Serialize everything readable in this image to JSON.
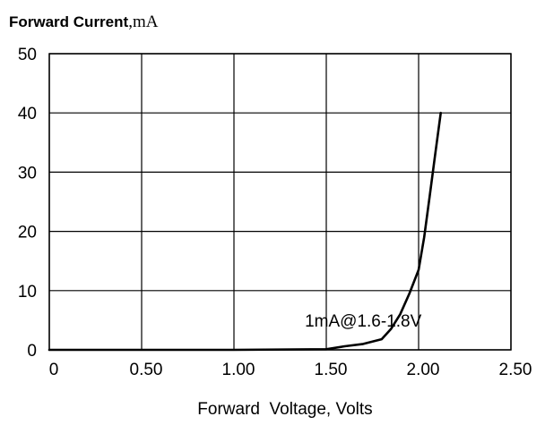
{
  "chart_data": {
    "type": "line",
    "title": "Forward Current",
    "title_unit": ",mA",
    "xlabel": "Forward  Voltage, Volts",
    "ylabel": "",
    "xlim": [
      0,
      2.5
    ],
    "ylim": [
      0,
      50
    ],
    "x_ticks": [
      0,
      0.5,
      1.0,
      1.5,
      2.0,
      2.5
    ],
    "x_tick_labels": [
      "0",
      "0.50",
      "1.00",
      "1.50",
      "2.00",
      "2.50"
    ],
    "y_ticks": [
      0,
      10,
      20,
      30,
      40,
      50
    ],
    "y_tick_labels": [
      "0",
      "10",
      "20",
      "30",
      "40",
      "50"
    ],
    "grid": true,
    "legend": "none",
    "annotations": [
      {
        "text": "1mA@1.6-1.8V",
        "x": 1.7,
        "y": 5
      }
    ],
    "series": [
      {
        "color": "#000000",
        "x": [
          0,
          1.0,
          1.5,
          1.6,
          1.7,
          1.8,
          1.85,
          1.9,
          1.95,
          2.0,
          2.03,
          2.06,
          2.09,
          2.12
        ],
        "y": [
          0,
          0,
          0.1,
          0.6,
          1.0,
          1.8,
          3.5,
          6,
          9.5,
          13.5,
          19,
          26,
          33,
          40
        ]
      }
    ]
  }
}
